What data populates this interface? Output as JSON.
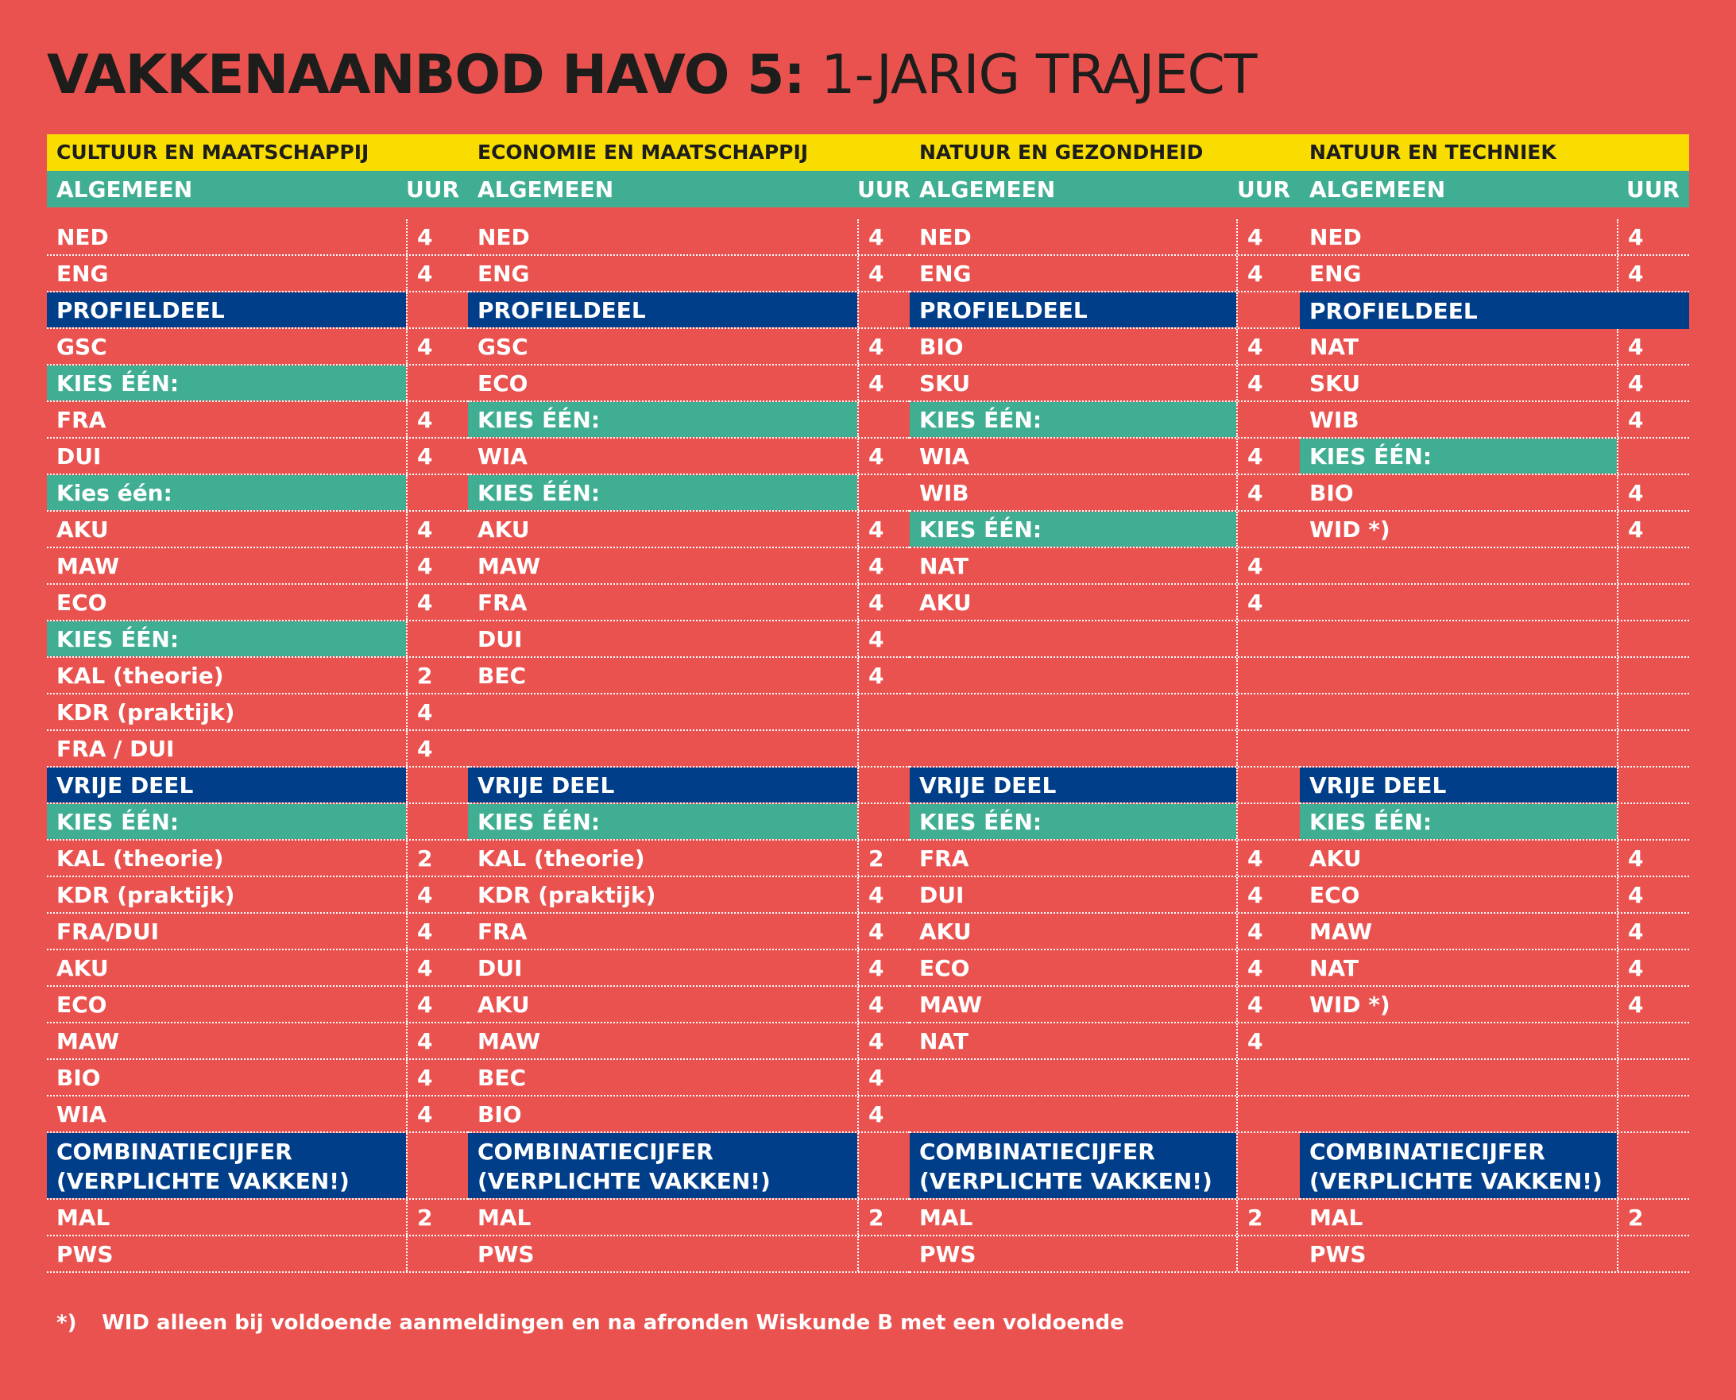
{
  "title": {
    "bold": "VAKKENAANBOD HAVO 5:",
    "light": "1-JARIG TRAJECT"
  },
  "colors": {
    "background": "#ea524f",
    "yellow": "#f9dd00",
    "green": "#40ae93",
    "blue": "#003e8a",
    "text_dark": "#1d1d1b"
  },
  "columns": [
    {
      "category": "CULTUUR EN MAATSCHAPPIJ",
      "header": {
        "label": "ALGEMEEN",
        "uur": "UUR"
      },
      "rows": [
        {
          "type": "subject",
          "label": "NED",
          "hours": "4"
        },
        {
          "type": "subject",
          "label": "ENG",
          "hours": "4"
        },
        {
          "type": "section",
          "label": "PROFIELDEEL",
          "hours": ""
        },
        {
          "type": "subject",
          "label": "GSC",
          "hours": "4"
        },
        {
          "type": "choice",
          "label": "KIES ÉÉN:",
          "hours": ""
        },
        {
          "type": "subject",
          "label": "FRA",
          "hours": "4"
        },
        {
          "type": "subject",
          "label": "DUI",
          "hours": "4"
        },
        {
          "type": "choice",
          "label": "Kies één:",
          "hours": ""
        },
        {
          "type": "subject",
          "label": "AKU",
          "hours": "4"
        },
        {
          "type": "subject",
          "label": "MAW",
          "hours": "4"
        },
        {
          "type": "subject",
          "label": "ECO",
          "hours": "4"
        },
        {
          "type": "choice",
          "label": "KIES ÉÉN:",
          "hours": ""
        },
        {
          "type": "subject",
          "label": "KAL (theorie)",
          "hours": "2"
        },
        {
          "type": "subject",
          "label": "KDR (praktijk)",
          "hours": "4"
        },
        {
          "type": "subject",
          "label": "FRA / DUI",
          "hours": "4"
        },
        {
          "type": "section",
          "label": "VRIJE DEEL",
          "hours": ""
        },
        {
          "type": "choice",
          "label": "KIES ÉÉN:",
          "hours": ""
        },
        {
          "type": "subject",
          "label": "KAL (theorie)",
          "hours": "2"
        },
        {
          "type": "subject",
          "label": "KDR (praktijk)",
          "hours": "4"
        },
        {
          "type": "subject",
          "label": "FRA/DUI",
          "hours": "4"
        },
        {
          "type": "subject",
          "label": "AKU",
          "hours": "4"
        },
        {
          "type": "subject",
          "label": "ECO",
          "hours": "4"
        },
        {
          "type": "subject",
          "label": "MAW",
          "hours": "4"
        },
        {
          "type": "subject",
          "label": "BIO",
          "hours": "4"
        },
        {
          "type": "subject",
          "label": "WIA",
          "hours": "4"
        },
        {
          "type": "section2",
          "label": "COMBINATIECIJFER",
          "label2": "(VERPLICHTE VAKKEN!)",
          "hours": ""
        },
        {
          "type": "subject",
          "label": "MAL",
          "hours": "2"
        },
        {
          "type": "subject",
          "label": "PWS",
          "hours": ""
        }
      ]
    },
    {
      "category": "ECONOMIE EN MAATSCHAPPIJ",
      "header": {
        "label": "ALGEMEEN",
        "uur": "UUR"
      },
      "rows": [
        {
          "type": "subject",
          "label": "NED",
          "hours": "4"
        },
        {
          "type": "subject",
          "label": "ENG",
          "hours": "4"
        },
        {
          "type": "section",
          "label": "PROFIELDEEL",
          "hours": ""
        },
        {
          "type": "subject",
          "label": "GSC",
          "hours": "4"
        },
        {
          "type": "subject",
          "label": "ECO",
          "hours": "4"
        },
        {
          "type": "choice",
          "label": "KIES ÉÉN:",
          "hours": ""
        },
        {
          "type": "subject",
          "label": "WIA",
          "hours": "4"
        },
        {
          "type": "choice",
          "label": "KIES ÉÉN:",
          "hours": ""
        },
        {
          "type": "subject",
          "label": "AKU",
          "hours": "4"
        },
        {
          "type": "subject",
          "label": "MAW",
          "hours": "4"
        },
        {
          "type": "subject",
          "label": "FRA",
          "hours": "4"
        },
        {
          "type": "subject",
          "label": "DUI",
          "hours": "4"
        },
        {
          "type": "subject",
          "label": "BEC",
          "hours": "4"
        },
        {
          "type": "subject",
          "label": "",
          "hours": ""
        },
        {
          "type": "subject",
          "label": "",
          "hours": ""
        },
        {
          "type": "section",
          "label": "VRIJE DEEL",
          "hours": ""
        },
        {
          "type": "choice",
          "label": "KIES ÉÉN:",
          "hours": ""
        },
        {
          "type": "subject",
          "label": "KAL (theorie)",
          "hours": "2"
        },
        {
          "type": "subject",
          "label": "KDR (praktijk)",
          "hours": "4"
        },
        {
          "type": "subject",
          "label": "FRA",
          "hours": "4"
        },
        {
          "type": "subject",
          "label": "DUI",
          "hours": "4"
        },
        {
          "type": "subject",
          "label": "AKU",
          "hours": "4"
        },
        {
          "type": "subject",
          "label": "MAW",
          "hours": "4"
        },
        {
          "type": "subject",
          "label": "BEC",
          "hours": "4"
        },
        {
          "type": "subject",
          "label": "BIO",
          "hours": "4"
        },
        {
          "type": "section2",
          "label": "COMBINATIECIJFER",
          "label2": "(VERPLICHTE VAKKEN!)",
          "hours": ""
        },
        {
          "type": "subject",
          "label": "MAL",
          "hours": "2"
        },
        {
          "type": "subject",
          "label": "PWS",
          "hours": ""
        }
      ]
    },
    {
      "category": "NATUUR EN GEZONDHEID",
      "header": {
        "label": "ALGEMEEN",
        "uur": "UUR"
      },
      "rows": [
        {
          "type": "subject",
          "label": "NED",
          "hours": "4"
        },
        {
          "type": "subject",
          "label": "ENG",
          "hours": "4"
        },
        {
          "type": "section",
          "label": "PROFIELDEEL",
          "hours": ""
        },
        {
          "type": "subject",
          "label": "BIO",
          "hours": "4"
        },
        {
          "type": "subject",
          "label": "SKU",
          "hours": "4"
        },
        {
          "type": "choice",
          "label": "KIES ÉÉN:",
          "hours": ""
        },
        {
          "type": "subject",
          "label": "WIA",
          "hours": "4"
        },
        {
          "type": "subject",
          "label": "WIB",
          "hours": "4"
        },
        {
          "type": "choice",
          "label": "KIES ÉÉN:",
          "hours": ""
        },
        {
          "type": "subject",
          "label": "NAT",
          "hours": "4"
        },
        {
          "type": "subject",
          "label": "AKU",
          "hours": "4"
        },
        {
          "type": "subject",
          "label": "",
          "hours": ""
        },
        {
          "type": "subject",
          "label": "",
          "hours": ""
        },
        {
          "type": "subject",
          "label": "",
          "hours": ""
        },
        {
          "type": "subject",
          "label": "",
          "hours": ""
        },
        {
          "type": "section",
          "label": "VRIJE DEEL",
          "hours": ""
        },
        {
          "type": "choice",
          "label": "KIES ÉÉN:",
          "hours": ""
        },
        {
          "type": "subject",
          "label": "FRA",
          "hours": "4"
        },
        {
          "type": "subject",
          "label": "DUI",
          "hours": "4"
        },
        {
          "type": "subject",
          "label": "AKU",
          "hours": "4"
        },
        {
          "type": "subject",
          "label": "ECO",
          "hours": "4"
        },
        {
          "type": "subject",
          "label": "MAW",
          "hours": "4"
        },
        {
          "type": "subject",
          "label": "NAT",
          "hours": "4"
        },
        {
          "type": "subject",
          "label": "",
          "hours": ""
        },
        {
          "type": "subject",
          "label": "",
          "hours": ""
        },
        {
          "type": "section2",
          "label": "COMBINATIECIJFER",
          "label2": "(VERPLICHTE VAKKEN!)",
          "hours": ""
        },
        {
          "type": "subject",
          "label": "MAL",
          "hours": "2"
        },
        {
          "type": "subject",
          "label": "PWS",
          "hours": ""
        }
      ]
    },
    {
      "category": "NATUUR EN TECHNIEK",
      "header": {
        "label": "ALGEMEEN",
        "uur": "UUR"
      },
      "rows": [
        {
          "type": "subject",
          "label": "NED",
          "hours": "4"
        },
        {
          "type": "subject",
          "label": "ENG",
          "hours": "4"
        },
        {
          "type": "section_full",
          "label": "PROFIELDEEL",
          "hours": ""
        },
        {
          "type": "subject",
          "label": "NAT",
          "hours": "4"
        },
        {
          "type": "subject",
          "label": "SKU",
          "hours": "4"
        },
        {
          "type": "subject",
          "label": "WIB",
          "hours": "4"
        },
        {
          "type": "choice",
          "label": "KIES ÉÉN:",
          "hours": ""
        },
        {
          "type": "subject",
          "label": "BIO",
          "hours": "4"
        },
        {
          "type": "subject",
          "label": "WID *)",
          "hours": "4"
        },
        {
          "type": "subject",
          "label": "",
          "hours": ""
        },
        {
          "type": "subject",
          "label": "",
          "hours": ""
        },
        {
          "type": "subject",
          "label": "",
          "hours": ""
        },
        {
          "type": "subject",
          "label": "",
          "hours": ""
        },
        {
          "type": "subject",
          "label": "",
          "hours": ""
        },
        {
          "type": "subject",
          "label": "",
          "hours": ""
        },
        {
          "type": "section",
          "label": "VRIJE DEEL",
          "hours": ""
        },
        {
          "type": "choice",
          "label": "KIES ÉÉN:",
          "hours": ""
        },
        {
          "type": "subject",
          "label": "AKU",
          "hours": "4"
        },
        {
          "type": "subject",
          "label": "ECO",
          "hours": "4"
        },
        {
          "type": "subject",
          "label": "MAW",
          "hours": "4"
        },
        {
          "type": "subject",
          "label": "NAT",
          "hours": "4"
        },
        {
          "type": "subject",
          "label": "WID *)",
          "hours": "4"
        },
        {
          "type": "subject",
          "label": "",
          "hours": ""
        },
        {
          "type": "subject",
          "label": "",
          "hours": ""
        },
        {
          "type": "subject",
          "label": "",
          "hours": ""
        },
        {
          "type": "section2",
          "label": "COMBINATIECIJFER",
          "label2": "(VERPLICHTE VAKKEN!)",
          "hours": ""
        },
        {
          "type": "subject",
          "label": "MAL",
          "hours": "2"
        },
        {
          "type": "subject",
          "label": "PWS",
          "hours": ""
        }
      ]
    }
  ],
  "footnote": {
    "mark": "*)",
    "text": "WID alleen bij voldoende aanmeldingen en na afronden Wiskunde B met een voldoende"
  }
}
